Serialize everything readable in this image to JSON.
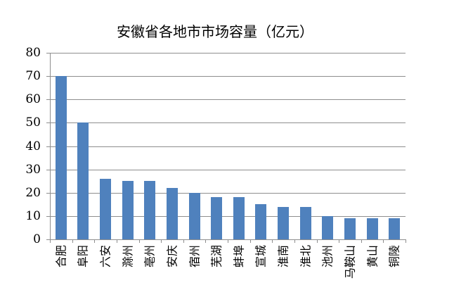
{
  "page": {
    "background": "#FFFFFF"
  },
  "chart_data": {
    "type": "bar",
    "title": "安徽省各地市市场容量（亿元）",
    "categories": [
      "合肥",
      "阜阳",
      "六安",
      "滁州",
      "亳州",
      "安庆",
      "宿州",
      "芜湖",
      "蚌埠",
      "宣城",
      "淮南",
      "淮北",
      "池州",
      "马鞍山",
      "黄山",
      "铜陵"
    ],
    "values": [
      70,
      50,
      26,
      25,
      25,
      22,
      20,
      18,
      18,
      15,
      14,
      14,
      10,
      9,
      9,
      9
    ],
    "xlabel": "",
    "ylabel": "",
    "ylim": [
      0,
      80
    ],
    "yticks": [
      0,
      10,
      20,
      30,
      40,
      50,
      60,
      70,
      80
    ],
    "grid": true,
    "legend": false,
    "bar_color": "#4F81BD",
    "grid_color": "#8E8E8E",
    "axis_color": "#8E8E8E",
    "text_color": "#000000"
  }
}
